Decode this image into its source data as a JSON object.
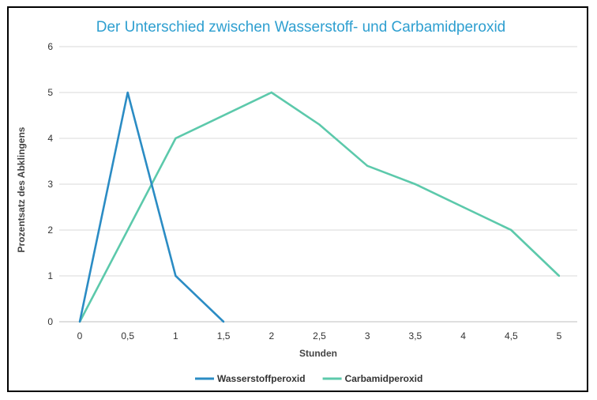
{
  "chart_data": {
    "type": "line",
    "title": "Der Unterschied zwischen Wasserstoff- und Carbamidperoxid",
    "xlabel": "Stunden",
    "ylabel": "Prozentsatz des Abklingens",
    "x_ticks": [
      "0",
      "0,5",
      "1",
      "1,5",
      "2",
      "2,5",
      "3",
      "3,5",
      "4",
      "4,5",
      "5"
    ],
    "x_values": [
      0,
      0.5,
      1,
      1.5,
      2,
      2.5,
      3,
      3.5,
      4,
      4.5,
      5
    ],
    "y_ticks": [
      0,
      1,
      2,
      3,
      4,
      5,
      6
    ],
    "xlim": [
      0,
      5
    ],
    "ylim": [
      0,
      6
    ],
    "grid": true,
    "legend_position": "bottom",
    "series": [
      {
        "name": "Wasserstoffperoxid",
        "color": "#2b8cc4",
        "x": [
          0,
          0.5,
          1,
          1.5
        ],
        "y": [
          0,
          5,
          1,
          0
        ]
      },
      {
        "name": "Carbamidperoxid",
        "color": "#5cc9ab",
        "x": [
          0,
          1,
          2,
          2.5,
          3,
          3.5,
          4,
          4.5,
          5
        ],
        "y": [
          0,
          4,
          5,
          4.3,
          3.4,
          3.0,
          2.5,
          2.0,
          1.0
        ]
      }
    ]
  }
}
